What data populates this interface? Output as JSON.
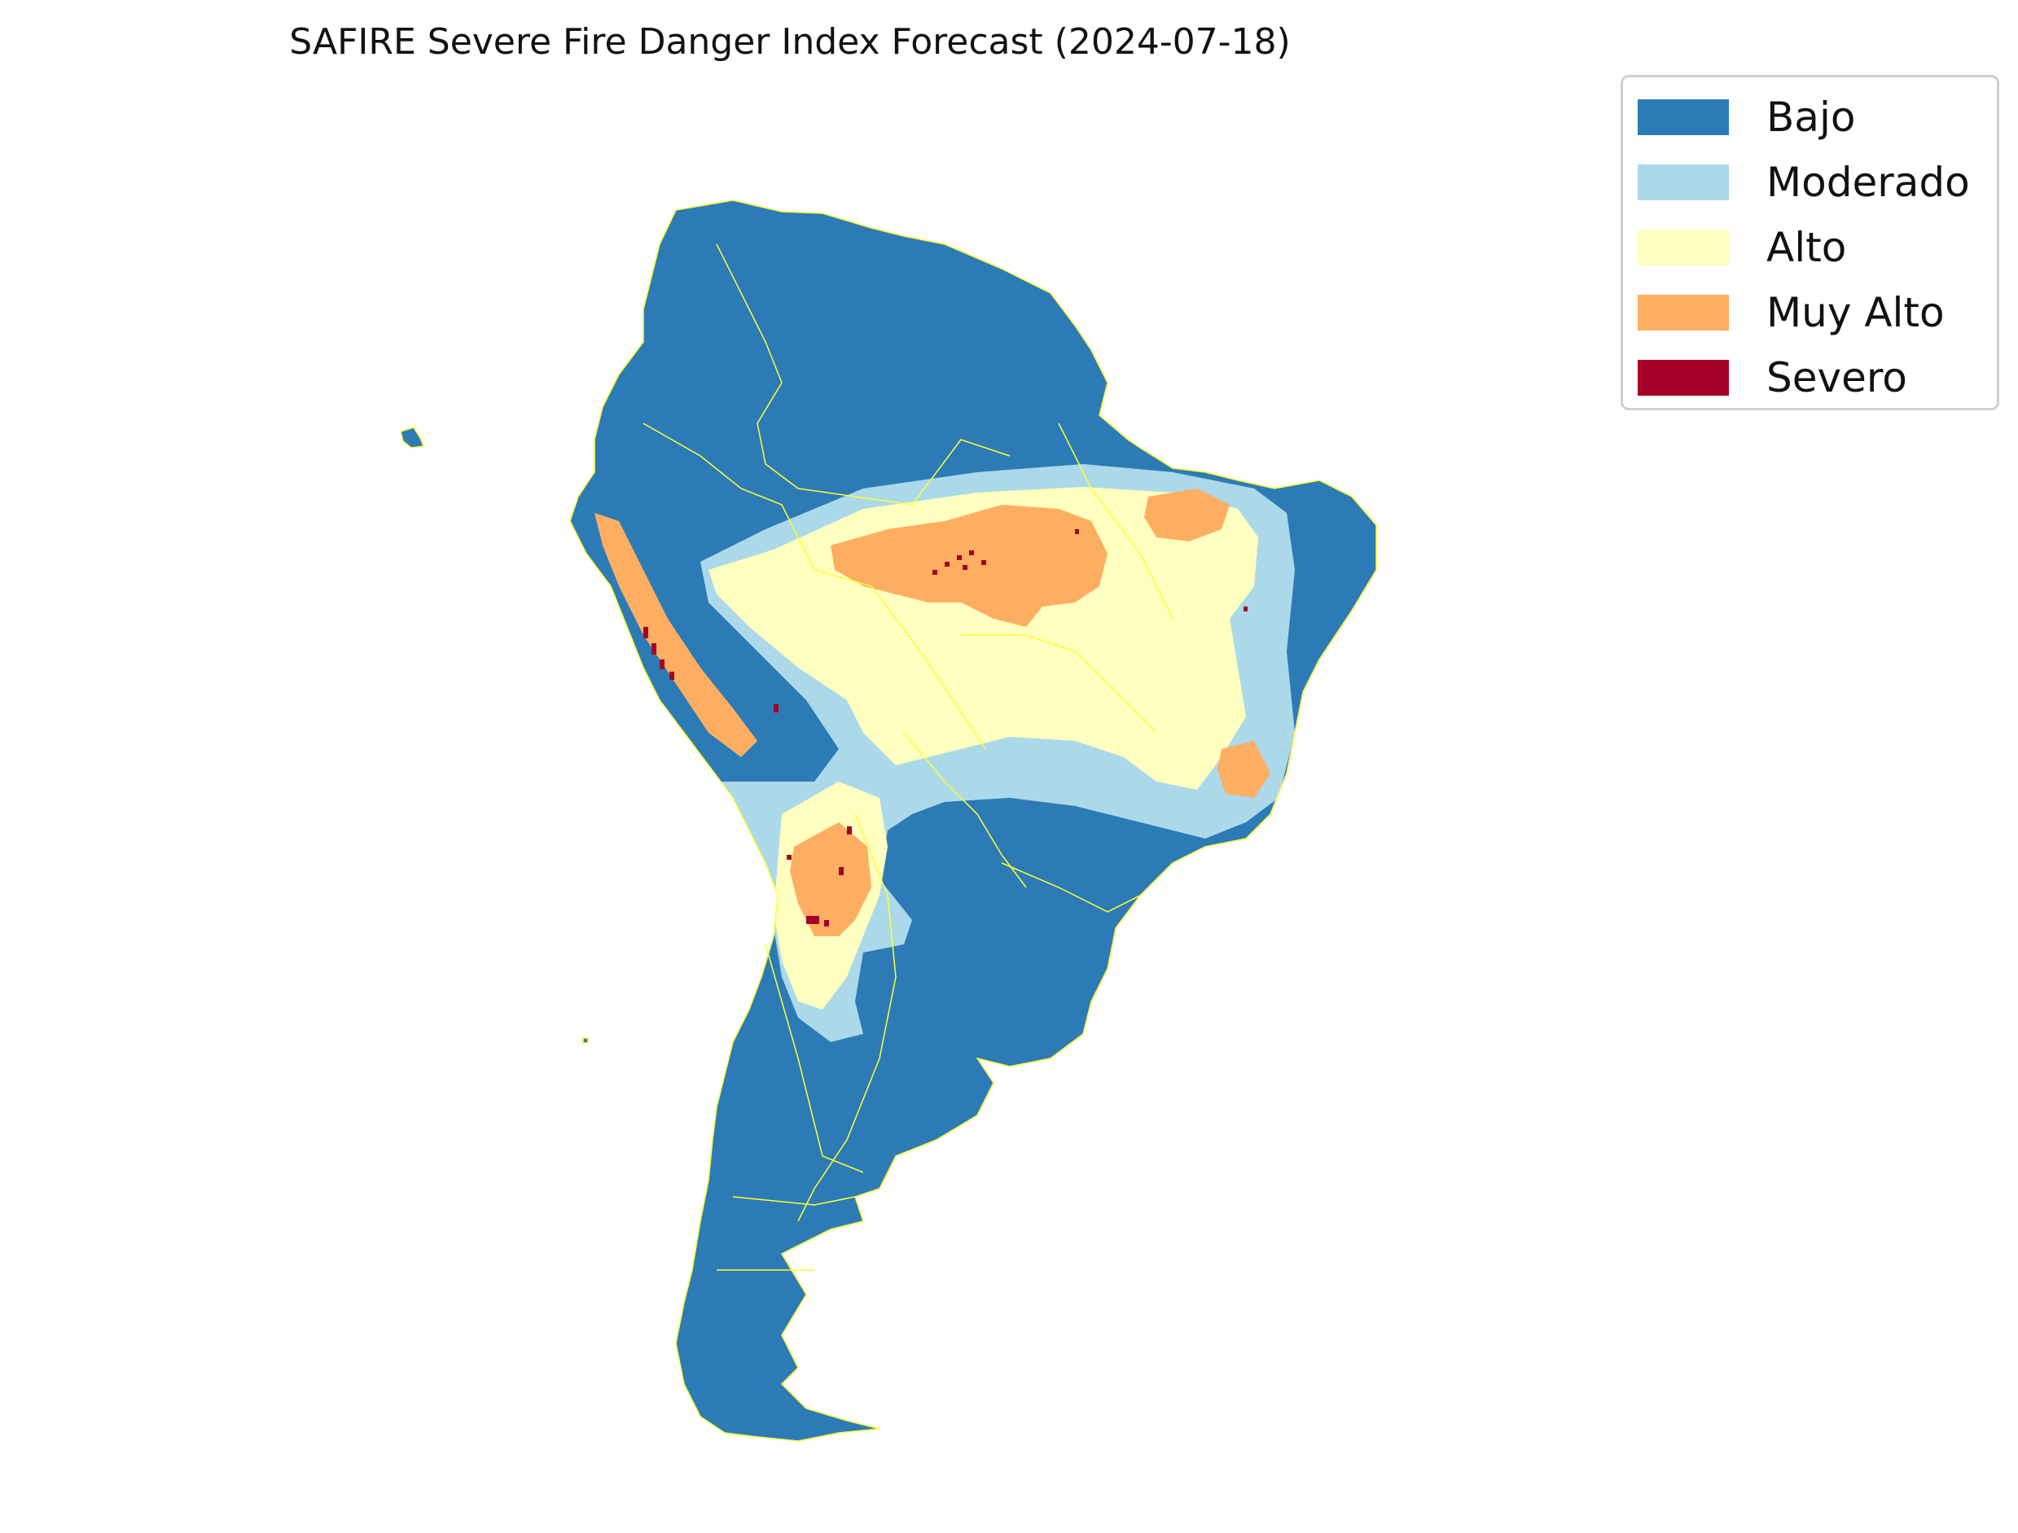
{
  "title": "SAFIRE Severe Fire Danger Index Forecast (2024-07-18)",
  "legend": {
    "items": [
      {
        "label": "Bajo",
        "color": "#2c7bb6"
      },
      {
        "label": "Moderado",
        "color": "#abd9e9"
      },
      {
        "label": "Alto",
        "color": "#ffffbf"
      },
      {
        "label": "Muy Alto",
        "color": "#fdae61"
      },
      {
        "label": "Severo",
        "color": "#a50026"
      }
    ]
  },
  "map": {
    "region": "South America",
    "border_color": "#ffff33",
    "categories": [
      "Bajo",
      "Moderado",
      "Alto",
      "Muy Alto",
      "Severo"
    ]
  }
}
